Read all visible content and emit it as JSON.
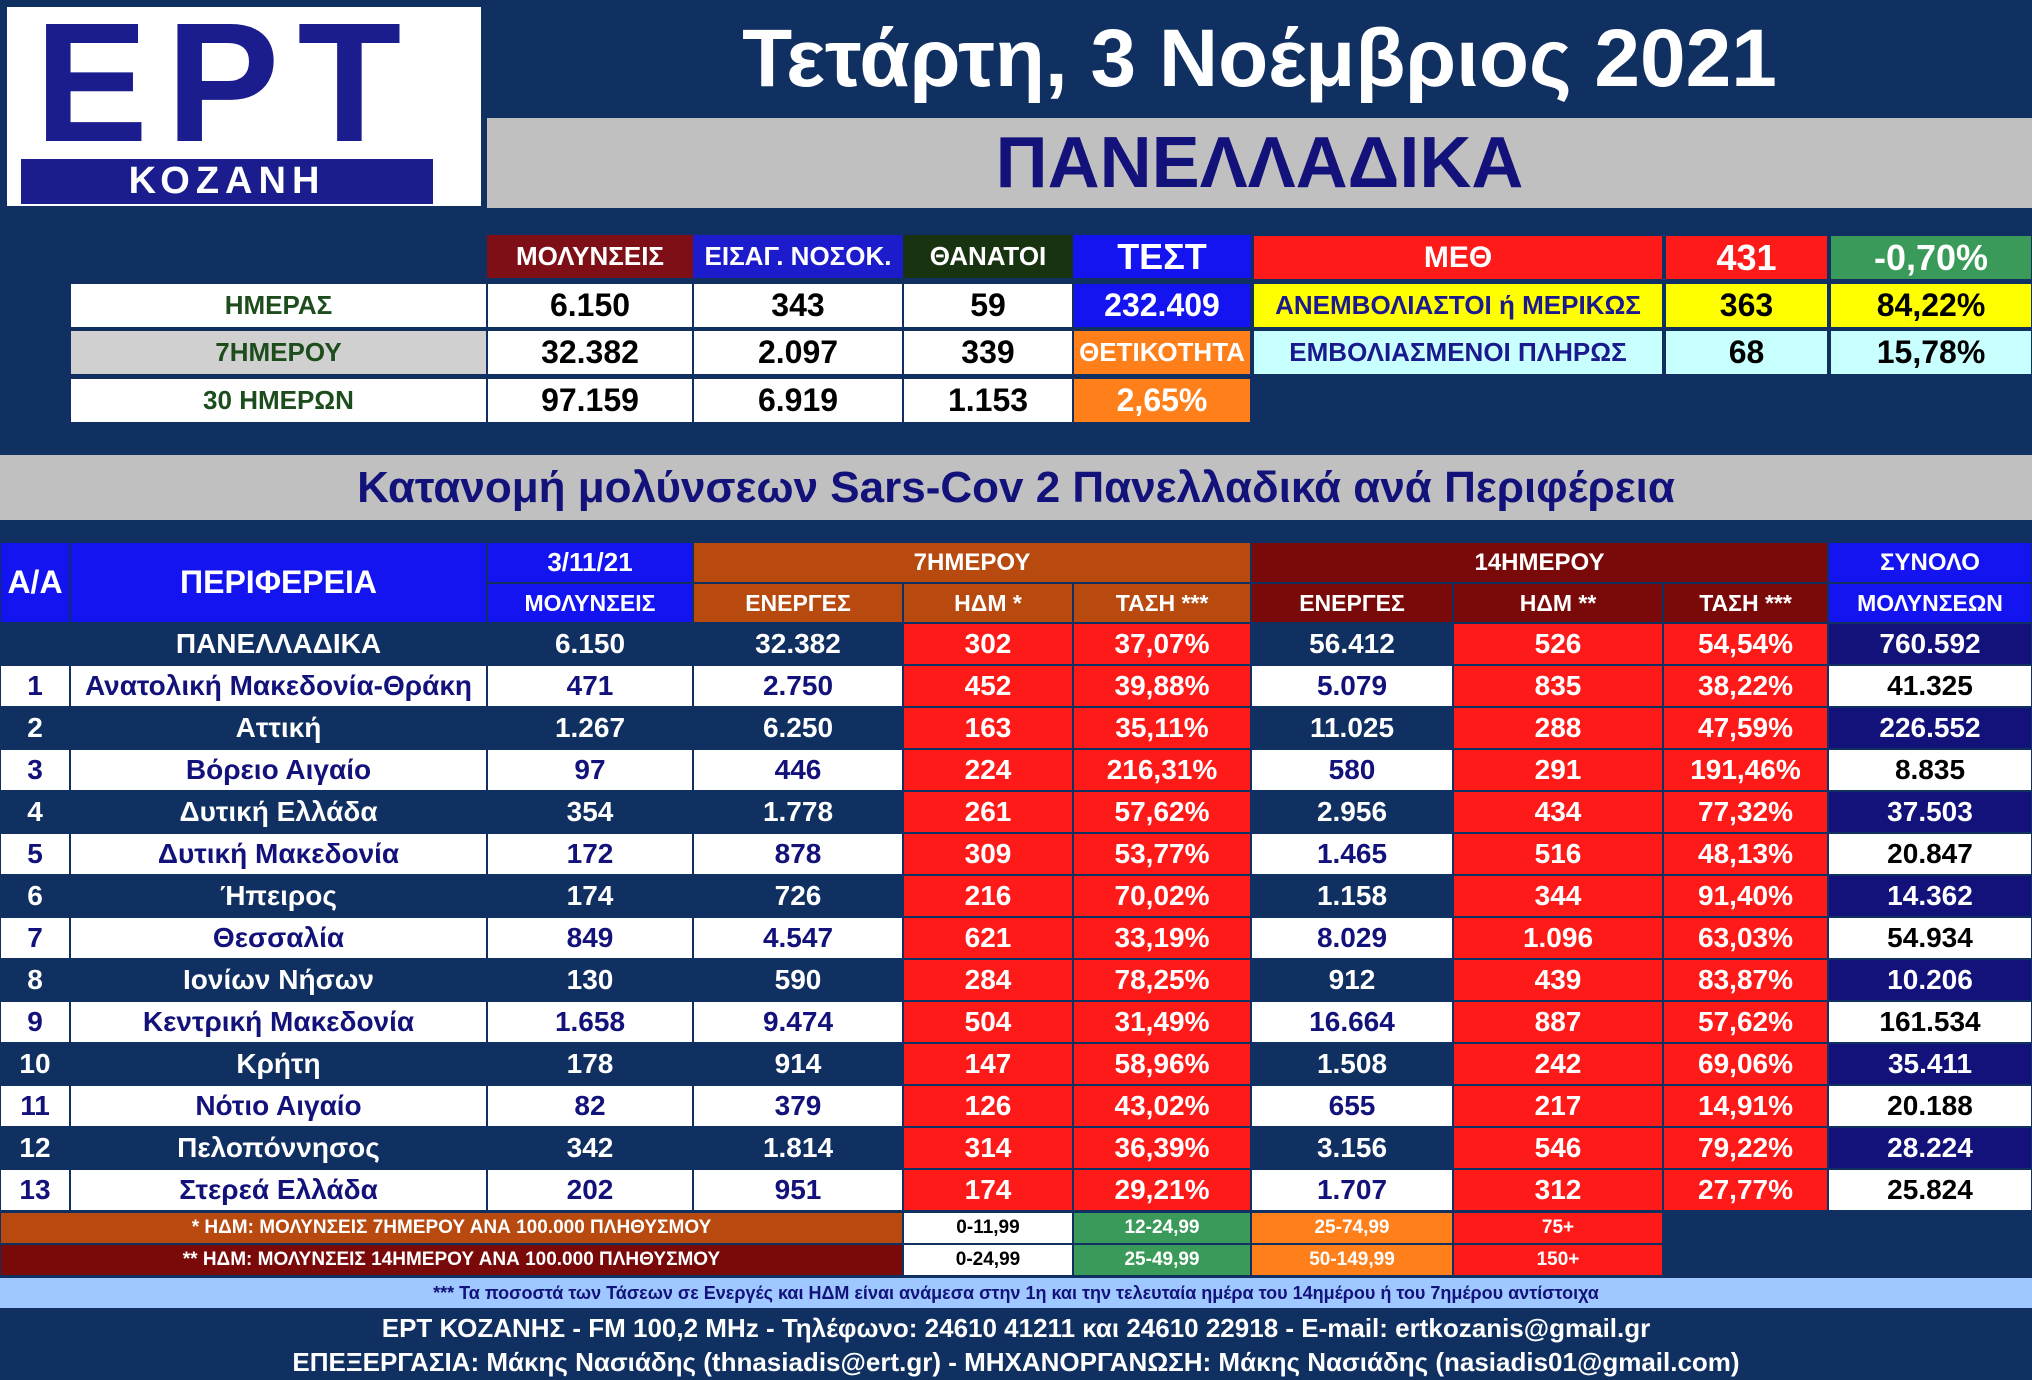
{
  "header": {
    "logo_main": "ΕΡΤ",
    "logo_sub": "ΚΟΖΑΝΗ",
    "date": "Τετάρτη, 3 Νοέμβριος 2021",
    "scope": "ΠΑΝΕΛΛΑΔΙΚΑ"
  },
  "summary": {
    "headers": {
      "mol": "ΜΟΛΥΝΣΕΙΣ",
      "eis": "ΕΙΣΑΓ. ΝΟΣΟΚ.",
      "than": "ΘΑΝΑΤΟΙ",
      "test": "ΤΕΣΤ"
    },
    "rows": [
      {
        "label": "ΗΜΕΡΑΣ",
        "mol": "6.150",
        "eis": "343",
        "than": "59"
      },
      {
        "label": "7ΗΜΕΡΟΥ",
        "mol": "32.382",
        "eis": "2.097",
        "than": "339"
      },
      {
        "label": "30 ΗΜΕΡΩΝ",
        "mol": "97.159",
        "eis": "6.919",
        "than": "1.153"
      }
    ],
    "test_value": "232.409",
    "positivity_label": "ΘΕΤΙΚΟΤΗΤΑ",
    "positivity_value": "2,65%",
    "icu": {
      "label": "ΜΕΘ",
      "value": "431",
      "change": "-0,70%",
      "unvacc_label": "ΑΝΕΜΒΟΛΙΑΣΤΟΙ ή ΜΕΡΙΚΩΣ",
      "unvacc_value": "363",
      "unvacc_pct": "84,22%",
      "vacc_label": "ΕΜΒΟΛΙΑΣΜΕΝΟΙ ΠΛΗΡΩΣ",
      "vacc_value": "68",
      "vacc_pct": "15,78%"
    }
  },
  "section_title": "Κατανομή μολύνσεων Sars-Cov 2 Πανελλαδικά ανά Περιφέρεια",
  "table": {
    "h_aa": "Α/Α",
    "h_region": "ΠΕΡΙΦΕΡΕΙΑ",
    "h_date": "3/11/21",
    "h_date_sub": "ΜΟΛΥΝΣΕΙΣ",
    "h_7": "7ΗΜΕΡΟΥ",
    "h_14": "14ΗΜΕΡΟΥ",
    "h_total": "ΣΥΝΟΛΟ",
    "h_total_sub": "ΜΟΛΥΝΣΕΩΝ",
    "h_active7": "ΕΝΕΡΓΕΣ",
    "h_hdm7": "ΗΔΜ *",
    "h_trend7": "ΤΑΣΗ ***",
    "h_active14": "ΕΝΕΡΓΕΣ",
    "h_hdm14": "ΗΔΜ **",
    "h_trend14": "ΤΑΣΗ ***",
    "total_row": {
      "region": "ΠΑΝΕΛΛΑΔΙΚΑ",
      "day": "6.150",
      "a7": "32.382",
      "h7": "302",
      "t7": "37,07%",
      "a14": "56.412",
      "h14": "526",
      "t14": "54,54%",
      "total": "760.592"
    },
    "rows": [
      {
        "n": "1",
        "region": "Ανατολική Μακεδονία-Θράκη",
        "day": "471",
        "a7": "2.750",
        "h7": "452",
        "t7": "39,88%",
        "a14": "5.079",
        "h14": "835",
        "t14": "38,22%",
        "total": "41.325"
      },
      {
        "n": "2",
        "region": "Αττική",
        "day": "1.267",
        "a7": "6.250",
        "h7": "163",
        "t7": "35,11%",
        "a14": "11.025",
        "h14": "288",
        "t14": "47,59%",
        "total": "226.552"
      },
      {
        "n": "3",
        "region": "Βόρειο Αιγαίο",
        "day": "97",
        "a7": "446",
        "h7": "224",
        "t7": "216,31%",
        "a14": "580",
        "h14": "291",
        "t14": "191,46%",
        "total": "8.835"
      },
      {
        "n": "4",
        "region": "Δυτική Ελλάδα",
        "day": "354",
        "a7": "1.778",
        "h7": "261",
        "t7": "57,62%",
        "a14": "2.956",
        "h14": "434",
        "t14": "77,32%",
        "total": "37.503"
      },
      {
        "n": "5",
        "region": "Δυτική Μακεδονία",
        "day": "172",
        "a7": "878",
        "h7": "309",
        "t7": "53,77%",
        "a14": "1.465",
        "h14": "516",
        "t14": "48,13%",
        "total": "20.847"
      },
      {
        "n": "6",
        "region": "Ήπειρος",
        "day": "174",
        "a7": "726",
        "h7": "216",
        "t7": "70,02%",
        "a14": "1.158",
        "h14": "344",
        "t14": "91,40%",
        "total": "14.362"
      },
      {
        "n": "7",
        "region": "Θεσσαλία",
        "day": "849",
        "a7": "4.547",
        "h7": "621",
        "t7": "33,19%",
        "a14": "8.029",
        "h14": "1.096",
        "t14": "63,03%",
        "total": "54.934"
      },
      {
        "n": "8",
        "region": "Ιονίων Νήσων",
        "day": "130",
        "a7": "590",
        "h7": "284",
        "t7": "78,25%",
        "a14": "912",
        "h14": "439",
        "t14": "83,87%",
        "total": "10.206"
      },
      {
        "n": "9",
        "region": "Κεντρική Μακεδονία",
        "day": "1.658",
        "a7": "9.474",
        "h7": "504",
        "t7": "31,49%",
        "a14": "16.664",
        "h14": "887",
        "t14": "57,62%",
        "total": "161.534"
      },
      {
        "n": "10",
        "region": "Κρήτη",
        "day": "178",
        "a7": "914",
        "h7": "147",
        "t7": "58,96%",
        "a14": "1.508",
        "h14": "242",
        "t14": "69,06%",
        "total": "35.411"
      },
      {
        "n": "11",
        "region": "Νότιο Αιγαίο",
        "day": "82",
        "a7": "379",
        "h7": "126",
        "t7": "43,02%",
        "a14": "655",
        "h14": "217",
        "t14": "14,91%",
        "total": "20.188"
      },
      {
        "n": "12",
        "region": "Πελοπόννησος",
        "day": "342",
        "a7": "1.814",
        "h7": "314",
        "t7": "36,39%",
        "a14": "3.156",
        "h14": "546",
        "t14": "79,22%",
        "total": "28.224"
      },
      {
        "n": "13",
        "region": "Στερεά Ελλάδα",
        "day": "202",
        "a7": "951",
        "h7": "174",
        "t7": "29,21%",
        "a14": "1.707",
        "h14": "312",
        "t14": "27,77%",
        "total": "25.824"
      }
    ]
  },
  "legend": {
    "note7": "* ΗΔΜ: ΜΟΛΥΝΣΕΙΣ 7ΗΜΕΡΟΥ ΑΝΑ 100.000 ΠΛΗΘΥΣΜΟΥ",
    "note14": "** ΗΔΜ: ΜΟΛΥΝΣΕΙΣ 14ΗΜΕΡΟΥ ΑΝΑ 100.000 ΠΛΗΘΥΣΜΟΥ",
    "r7": [
      "0-11,99",
      "12-24,99",
      "25-74,99",
      "75+"
    ],
    "r14": [
      "0-24,99",
      "25-49,99",
      "50-149,99",
      "150+"
    ]
  },
  "footer": {
    "note": "*** Τα ποσοστά των Τάσεων σε Ενεργές και ΗΔΜ είναι ανάμεσα στην 1η και την τελευταία ημέρα του 14ημέρου ή του 7ημέρου αντίστοιχα",
    "line1": "ΕΡΤ ΚΟΖΑΝΗΣ - FM 100,2 MHz - Τηλέφωνο:  24610 41211 και 24610 22918 - E-mail: ertkozanis@gmail.gr",
    "line2": "ΕΠΕΞΕΡΓΑΣΙΑ: Μάκης Νασιάδης (thnasiadis@ert.gr) - ΜΗΧΑΝΟΡΓΑΝΩΣΗ: Μάκης Νασιάδης (nasiadis01@gmail.com)"
  },
  "colors": {
    "background": "#0f3060",
    "infections": "#7f0f16",
    "hospital": "#1c1ccc",
    "deaths": "#17330f",
    "tests": "#1414f0",
    "alert_red": "#ff1a1a",
    "positivity_orange": "#ff7f1a",
    "green": "#3a9a5a",
    "yellow": "#ffff00",
    "light_cyan": "#c8ffff"
  }
}
